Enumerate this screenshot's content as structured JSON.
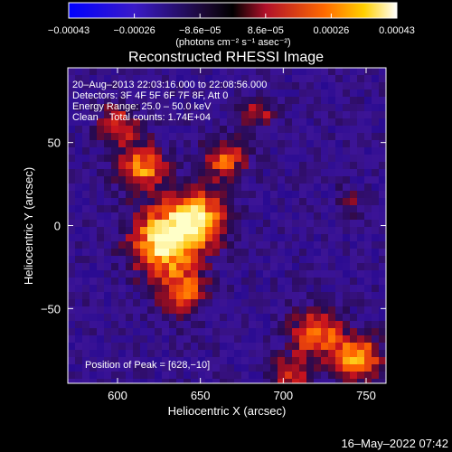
{
  "chart_data": {
    "type": "heatmap",
    "title": "Reconstructed RHESSI Image",
    "xlabel": "Heliocentric X (arcsec)",
    "ylabel": "Heliocentric Y (arcsec)",
    "xlim": [
      570,
      762
    ],
    "ylim": [
      -95,
      95
    ],
    "x_ticks": [
      600,
      650,
      700,
      750
    ],
    "y_ticks": [
      -50,
      0,
      50
    ],
    "x_tick_labels": [
      "600",
      "650",
      "700",
      "750"
    ],
    "y_tick_labels": [
      "−50",
      "0",
      "50"
    ],
    "colorbar": {
      "ticks": [
        "−0.00043",
        "−0.00026",
        "−8.6e−05",
        "8.6e−05",
        "0.00026",
        "0.00043"
      ],
      "range": [
        -0.00043,
        0.00043
      ],
      "unit_label": "(photons cm⁻² s⁻¹ asec⁻²)",
      "colors": [
        "#0000ff",
        "#2a0a78",
        "#000000",
        "#c8102e",
        "#ff8c00",
        "#ffff80"
      ]
    },
    "annotations": [
      "20–Aug–2013 22:03:16.000 to 22:08:56.000",
      "Detectors: 3F 4F 5F 6F 7F 8F, Att 0",
      "Energy Range: 25.0 – 50.0 keV",
      "Clean    Total counts: 1.74E+04"
    ],
    "peak_label": "Position of Peak = [628,−10]",
    "peak": {
      "x": 628,
      "y": -10
    },
    "sources": [
      {
        "x": 628,
        "y": -10,
        "sigma": 14,
        "amp": 1.0
      },
      {
        "x": 648,
        "y": 5,
        "sigma": 12,
        "amp": 0.85
      },
      {
        "x": 615,
        "y": 35,
        "sigma": 10,
        "amp": 0.75
      },
      {
        "x": 600,
        "y": 60,
        "sigma": 8,
        "amp": 0.6
      },
      {
        "x": 665,
        "y": 40,
        "sigma": 9,
        "amp": 0.6
      },
      {
        "x": 640,
        "y": -40,
        "sigma": 10,
        "amp": 0.6
      },
      {
        "x": 720,
        "y": -65,
        "sigma": 10,
        "amp": 0.75
      },
      {
        "x": 745,
        "y": -80,
        "sigma": 10,
        "amp": 0.8
      },
      {
        "x": 705,
        "y": -90,
        "sigma": 8,
        "amp": 0.55
      },
      {
        "x": 685,
        "y": 68,
        "sigma": 7,
        "amp": 0.45
      },
      {
        "x": 740,
        "y": 15,
        "sigma": 6,
        "amp": 0.35
      }
    ]
  },
  "timestamp": "16–May–2022 07:42"
}
